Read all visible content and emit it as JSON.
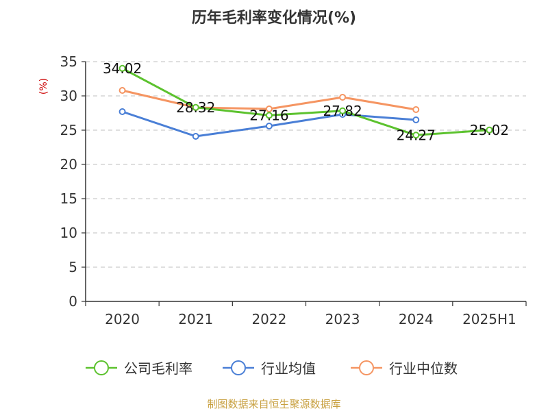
{
  "chart_data": {
    "type": "line",
    "title": "历年毛利率变化情况(%)",
    "ylabel": "(%)",
    "xlabel": "",
    "categories": [
      "2020",
      "2021",
      "2022",
      "2023",
      "2024",
      "2025H1"
    ],
    "ylim": [
      0,
      35
    ],
    "yticks": [
      "0",
      "5",
      "10",
      "15",
      "20",
      "25",
      "30",
      "35"
    ],
    "grid": true,
    "legend_position": "bottom",
    "series": [
      {
        "name": "公司毛利率",
        "color": "#5cc22e",
        "values": [
          34.02,
          28.32,
          27.16,
          27.82,
          24.27,
          25.02
        ],
        "labels": [
          "34.02",
          "28.32",
          "27.16",
          "27.82",
          "24.27",
          "25.02"
        ]
      },
      {
        "name": "行业均值",
        "color": "#4a7fd6",
        "values": [
          27.7,
          24.1,
          25.6,
          27.3,
          26.5,
          null
        ]
      },
      {
        "name": "行业中位数",
        "color": "#f59562",
        "values": [
          30.8,
          28.3,
          28.1,
          29.8,
          28.0,
          null
        ]
      }
    ],
    "source": "制图数据来自恒生聚源数据库"
  },
  "colors": {
    "axis": "#333333",
    "grid": "#cccccc",
    "ylabel": "#cc0000",
    "source": "#c8a040"
  }
}
